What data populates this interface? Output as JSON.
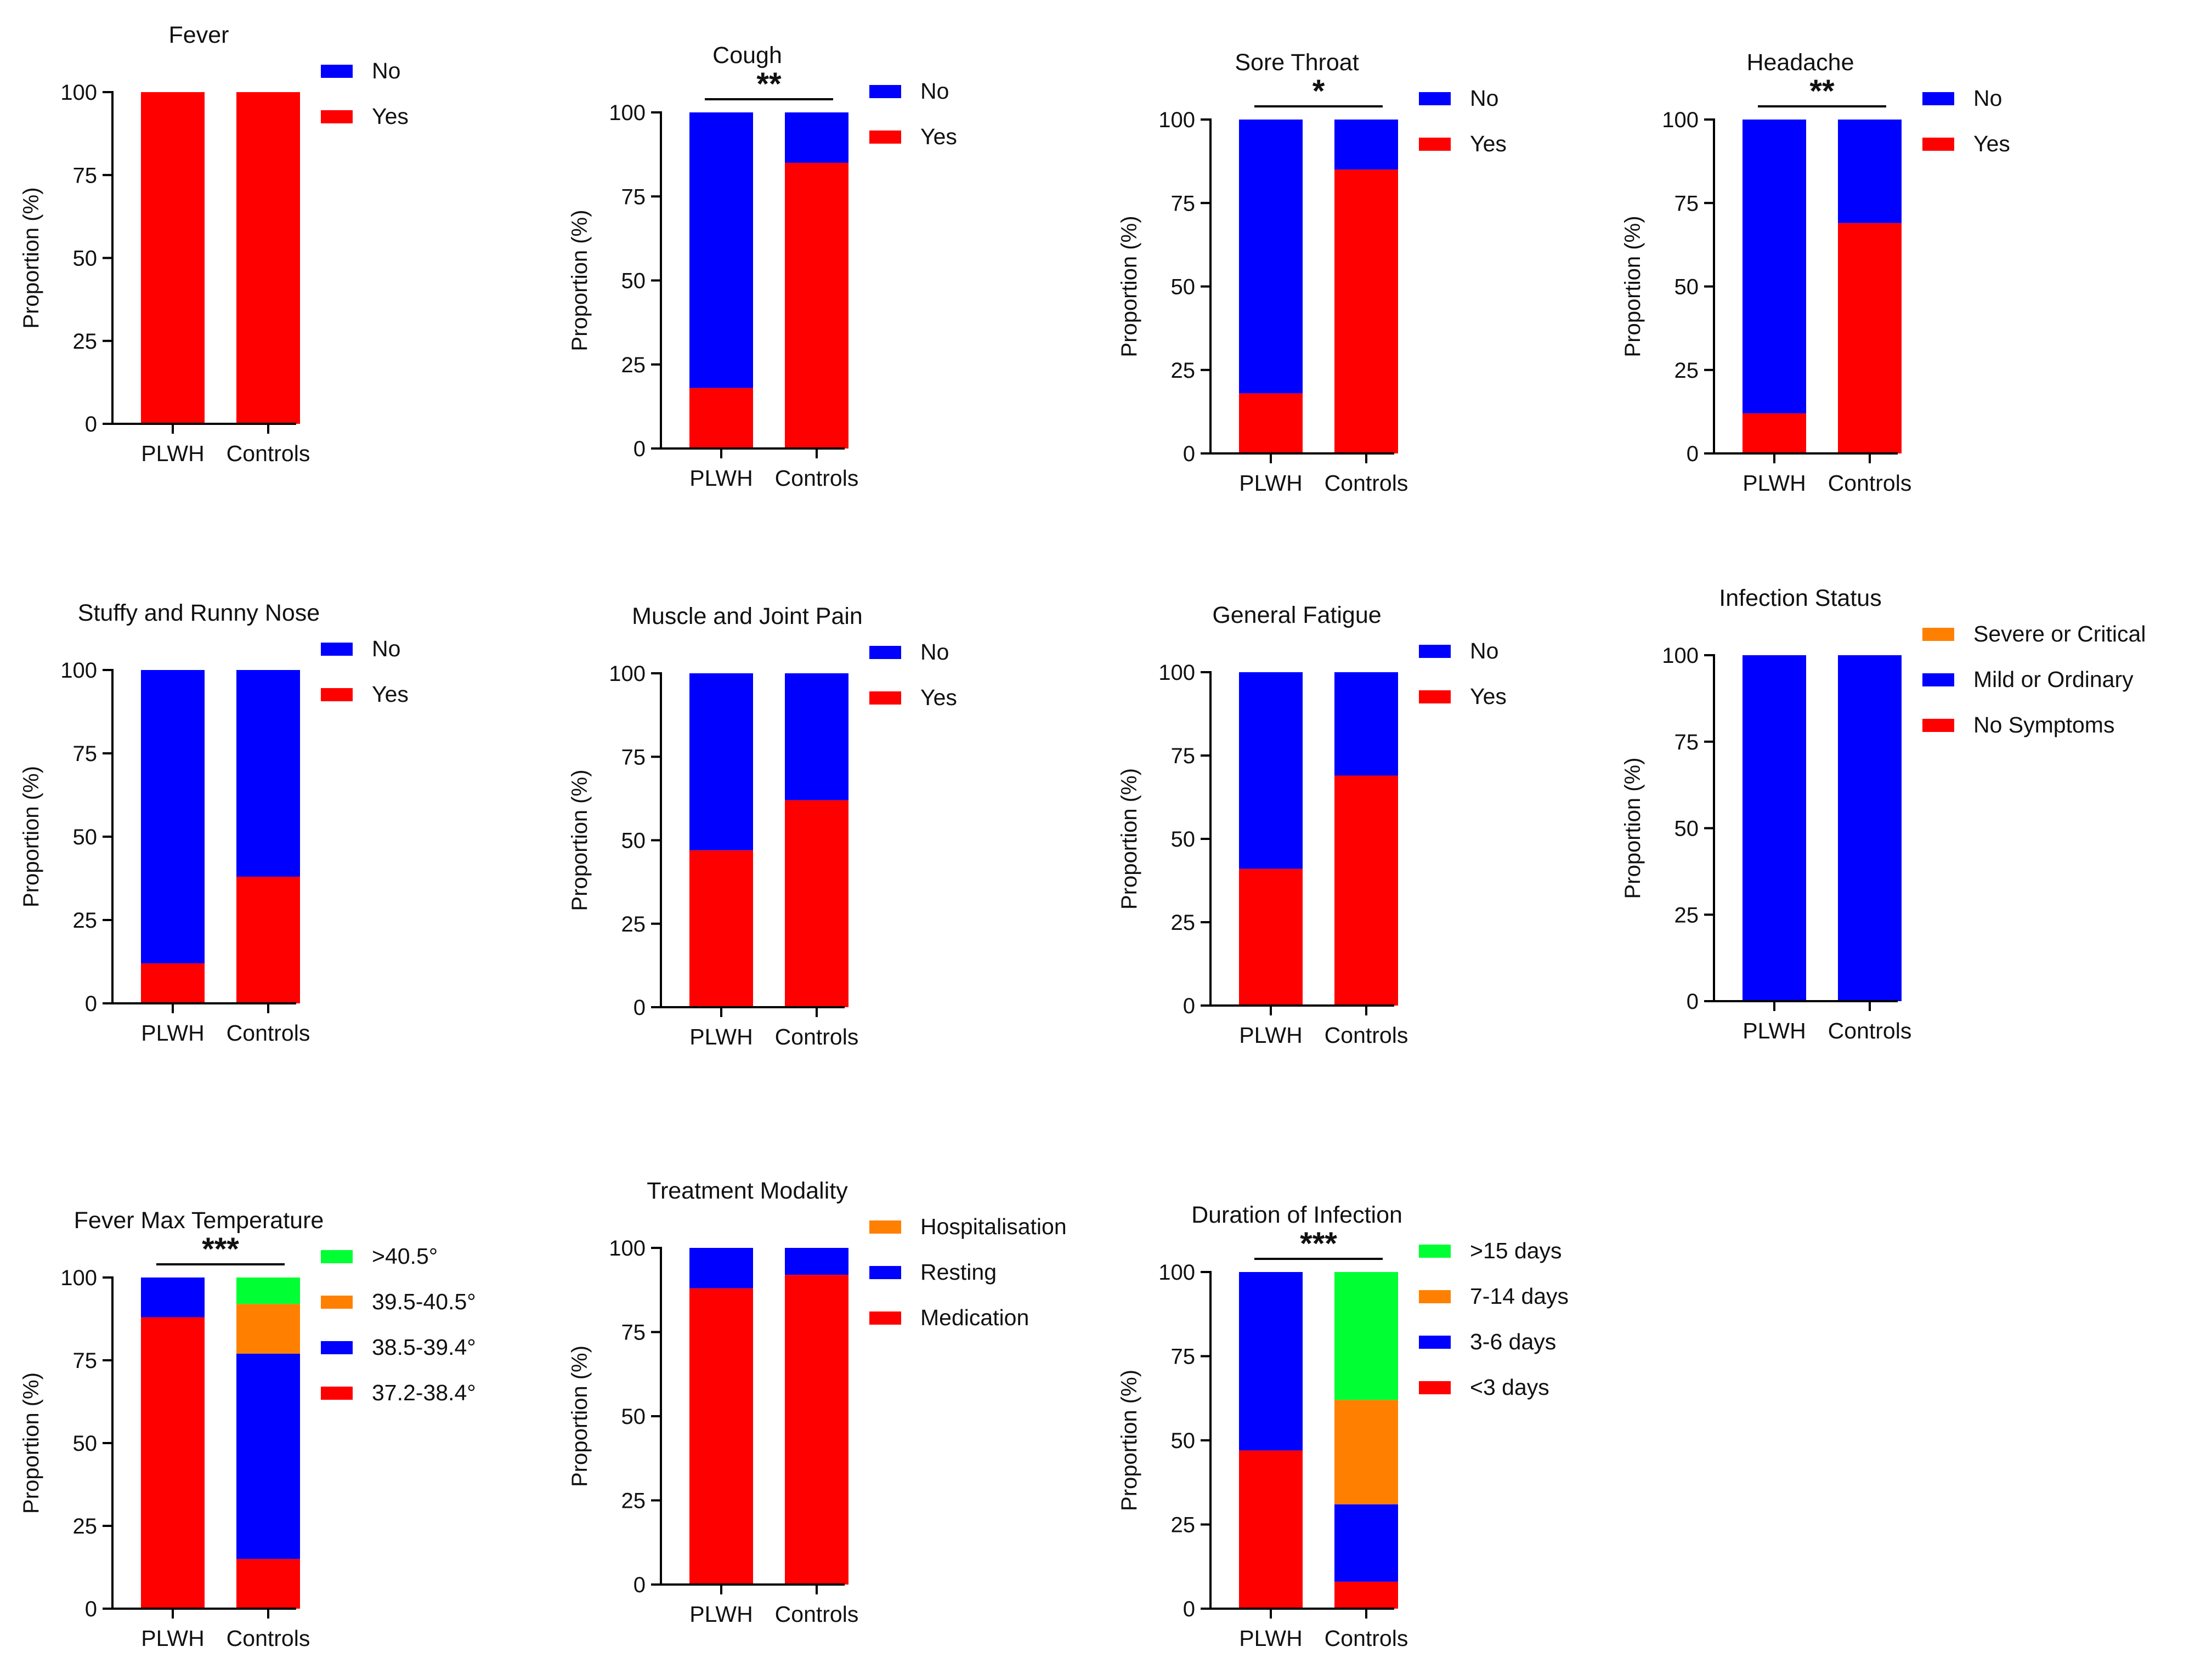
{
  "figure": {
    "groups": [
      "PLWH",
      "Controls"
    ],
    "y_axis_label": "Proportion (%)",
    "y_ticks": [
      0,
      25,
      50,
      75,
      100
    ]
  },
  "chart_data": [
    {
      "type": "bar",
      "stacked": true,
      "title": "Fever",
      "categories": [
        "PLWH",
        "Controls"
      ],
      "ylabel": "Proportion (%)",
      "ylim": [
        0,
        100
      ],
      "significance": "",
      "legend_position": "right",
      "series": [
        {
          "name": "Yes",
          "color": "#ff0000",
          "values": [
            100,
            100
          ]
        },
        {
          "name": "No",
          "color": "#0000ff",
          "values": [
            0,
            0
          ]
        }
      ]
    },
    {
      "type": "bar",
      "stacked": true,
      "title": "Cough",
      "categories": [
        "PLWH",
        "Controls"
      ],
      "ylabel": "Proportion (%)",
      "ylim": [
        0,
        100
      ],
      "significance": "**",
      "legend_position": "right",
      "series": [
        {
          "name": "Yes",
          "color": "#ff0000",
          "values": [
            18,
            85
          ]
        },
        {
          "name": "No",
          "color": "#0000ff",
          "values": [
            82,
            15
          ]
        }
      ]
    },
    {
      "type": "bar",
      "stacked": true,
      "title": "Sore Throat",
      "categories": [
        "PLWH",
        "Controls"
      ],
      "ylabel": "Proportion (%)",
      "ylim": [
        0,
        100
      ],
      "significance": "*",
      "legend_position": "right",
      "series": [
        {
          "name": "Yes",
          "color": "#ff0000",
          "values": [
            18,
            85
          ]
        },
        {
          "name": "No",
          "color": "#0000ff",
          "values": [
            82,
            15
          ]
        }
      ]
    },
    {
      "type": "bar",
      "stacked": true,
      "title": "Headache",
      "categories": [
        "PLWH",
        "Controls"
      ],
      "ylabel": "Proportion (%)",
      "ylim": [
        0,
        100
      ],
      "significance": "**",
      "legend_position": "right",
      "series": [
        {
          "name": "Yes",
          "color": "#ff0000",
          "values": [
            12,
            69
          ]
        },
        {
          "name": "No",
          "color": "#0000ff",
          "values": [
            88,
            31
          ]
        }
      ]
    },
    {
      "type": "bar",
      "stacked": true,
      "title": "Stuffy and Runny Nose",
      "categories": [
        "PLWH",
        "Controls"
      ],
      "ylabel": "Proportion (%)",
      "ylim": [
        0,
        100
      ],
      "significance": "",
      "legend_position": "right",
      "series": [
        {
          "name": "Yes",
          "color": "#ff0000",
          "values": [
            12,
            38
          ]
        },
        {
          "name": "No",
          "color": "#0000ff",
          "values": [
            88,
            62
          ]
        }
      ]
    },
    {
      "type": "bar",
      "stacked": true,
      "title": "Muscle and Joint Pain",
      "categories": [
        "PLWH",
        "Controls"
      ],
      "ylabel": "Proportion (%)",
      "ylim": [
        0,
        100
      ],
      "significance": "",
      "legend_position": "right",
      "series": [
        {
          "name": "Yes",
          "color": "#ff0000",
          "values": [
            47,
            62
          ]
        },
        {
          "name": "No",
          "color": "#0000ff",
          "values": [
            53,
            38
          ]
        }
      ]
    },
    {
      "type": "bar",
      "stacked": true,
      "title": "General Fatigue",
      "categories": [
        "PLWH",
        "Controls"
      ],
      "ylabel": "Proportion (%)",
      "ylim": [
        0,
        100
      ],
      "significance": "",
      "legend_position": "right",
      "series": [
        {
          "name": "Yes",
          "color": "#ff0000",
          "values": [
            41,
            69
          ]
        },
        {
          "name": "No",
          "color": "#0000ff",
          "values": [
            59,
            31
          ]
        }
      ]
    },
    {
      "type": "bar",
      "stacked": true,
      "title": "Infection Status",
      "categories": [
        "PLWH",
        "Controls"
      ],
      "ylabel": "Proportion (%)",
      "ylim": [
        0,
        100
      ],
      "significance": "",
      "legend_position": "right",
      "series": [
        {
          "name": "No Symptoms",
          "color": "#ff0000",
          "values": [
            0,
            0
          ]
        },
        {
          "name": "Mild or Ordinary",
          "color": "#0000ff",
          "values": [
            100,
            100
          ]
        },
        {
          "name": "Severe or Critical",
          "color": "#ff8000",
          "values": [
            0,
            0
          ]
        }
      ]
    },
    {
      "type": "bar",
      "stacked": true,
      "title": "Fever Max Temperature",
      "categories": [
        "PLWH",
        "Controls"
      ],
      "ylabel": "Proportion (%)",
      "ylim": [
        0,
        100
      ],
      "significance": "***",
      "legend_position": "right",
      "series": [
        {
          "name": "37.2-38.4°",
          "color": "#ff0000",
          "values": [
            88,
            15
          ]
        },
        {
          "name": "38.5-39.4°",
          "color": "#0000ff",
          "values": [
            12,
            62
          ]
        },
        {
          "name": "39.5-40.5°",
          "color": "#ff8000",
          "values": [
            0,
            15
          ]
        },
        {
          "name": ">40.5°",
          "color": "#00ff33",
          "values": [
            0,
            8
          ]
        }
      ]
    },
    {
      "type": "bar",
      "stacked": true,
      "title": "Treatment Modality",
      "categories": [
        "PLWH",
        "Controls"
      ],
      "ylabel": "Proportion (%)",
      "ylim": [
        0,
        100
      ],
      "significance": "",
      "legend_position": "right",
      "series": [
        {
          "name": "Medication",
          "color": "#ff0000",
          "values": [
            88,
            92
          ]
        },
        {
          "name": "Resting",
          "color": "#0000ff",
          "values": [
            12,
            8
          ]
        },
        {
          "name": "Hospitalisation",
          "color": "#ff8000",
          "values": [
            0,
            0
          ]
        }
      ]
    },
    {
      "type": "bar",
      "stacked": true,
      "title": "Duration of Infection",
      "categories": [
        "PLWH",
        "Controls"
      ],
      "ylabel": "Proportion (%)",
      "ylim": [
        0,
        100
      ],
      "significance": "***",
      "legend_position": "right",
      "series": [
        {
          "name": "<3 days",
          "color": "#ff0000",
          "values": [
            47,
            8
          ]
        },
        {
          "name": "3-6 days",
          "color": "#0000ff",
          "values": [
            53,
            23
          ]
        },
        {
          "name": "7-14 days",
          "color": "#ff8000",
          "values": [
            0,
            31
          ]
        },
        {
          "name": ">15 days",
          "color": "#00ff33",
          "values": [
            0,
            38
          ]
        }
      ]
    }
  ]
}
